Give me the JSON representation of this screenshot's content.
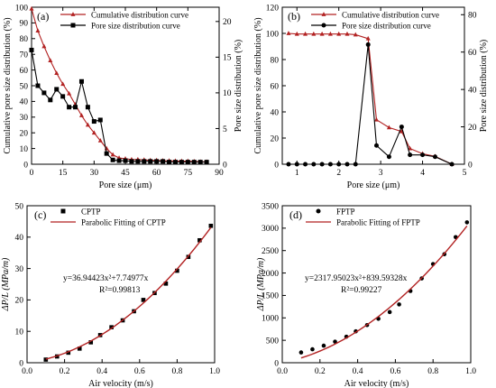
{
  "chart_data": [
    {
      "panel_label": "(a)",
      "type": "line",
      "xlabel": "Pore size (μm)",
      "ylabel": "Cumulative pore size distribution (%)",
      "y2label": "Pore size distribution (%)",
      "xlim": [
        0,
        90
      ],
      "ylim": [
        0,
        100
      ],
      "y2lim": [
        0,
        22
      ],
      "xticks": [
        0,
        15,
        30,
        45,
        60,
        75,
        90
      ],
      "yticks": [
        0,
        10,
        20,
        30,
        40,
        50,
        60,
        70,
        80,
        90,
        100
      ],
      "y2ticks": [
        0,
        5,
        10,
        15,
        20
      ],
      "legend_position": "top-center",
      "series": [
        {
          "name": "Cumulative distribution curve",
          "axis": "left",
          "color": "#b22222",
          "marker": "triangle",
          "x": [
            0,
            3,
            6,
            9,
            12,
            15,
            18,
            21,
            24,
            27,
            30,
            33,
            36,
            39,
            42,
            45,
            48,
            51,
            54,
            57,
            60,
            63,
            66,
            69,
            72,
            75,
            78,
            81,
            84
          ],
          "y": [
            99,
            85,
            75,
            66,
            58,
            51,
            45,
            38,
            31,
            25,
            20,
            15,
            10,
            6,
            4,
            3.5,
            3,
            3,
            2.8,
            2.5,
            2.5,
            2.3,
            2.2,
            2.1,
            2,
            2,
            1.8,
            1.6,
            1.5
          ]
        },
        {
          "name": "Pore size distribution curve",
          "axis": "right",
          "color": "#000000",
          "marker": "square",
          "x": [
            0,
            3,
            6,
            9,
            12,
            15,
            18,
            21,
            24,
            27,
            30,
            33,
            36,
            39,
            42,
            45,
            48,
            51,
            54,
            57,
            60,
            63,
            66,
            69,
            72,
            75,
            78,
            81,
            84
          ],
          "y": [
            16,
            11,
            10,
            9,
            10.5,
            9.5,
            8,
            8,
            11.6,
            8,
            6,
            6.2,
            1.5,
            0.6,
            0.5,
            0.5,
            0.4,
            0.4,
            0.4,
            0.4,
            0.4,
            0.4,
            0.3,
            0.3,
            0.3,
            0.3,
            0.3,
            0.3,
            0.3
          ]
        }
      ]
    },
    {
      "panel_label": "(b)",
      "type": "line",
      "xlabel": "Pore size (μm)",
      "ylabel": "Cumulative pore size distribution (%)",
      "y2label": "Pore size distribution (%)",
      "xlim": [
        0.65,
        5
      ],
      "ylim": [
        0,
        120
      ],
      "y2lim": [
        0,
        84
      ],
      "xticks": [
        1,
        2,
        3,
        4,
        5
      ],
      "yticks": [
        0,
        20,
        40,
        60,
        80,
        100,
        120
      ],
      "y2ticks": [
        0,
        20,
        40,
        60,
        80
      ],
      "legend_position": "top-center",
      "series": [
        {
          "name": "Cumulative distribution curve",
          "axis": "left",
          "color": "#b22222",
          "marker": "triangle",
          "x": [
            0.8,
            1.0,
            1.2,
            1.4,
            1.6,
            1.8,
            2.0,
            2.2,
            2.4,
            2.7,
            2.9,
            3.2,
            3.5,
            3.7,
            4.0,
            4.3,
            4.7
          ],
          "y": [
            100,
            99.5,
            99.5,
            99.5,
            99.5,
            99.5,
            99.5,
            99.5,
            99,
            96,
            34,
            28,
            25,
            12,
            8,
            6,
            0
          ]
        },
        {
          "name": "Pore size distribution curve",
          "axis": "right",
          "color": "#000000",
          "marker": "circle",
          "x": [
            0.8,
            1.0,
            1.2,
            1.4,
            1.6,
            1.8,
            2.0,
            2.2,
            2.4,
            2.7,
            2.9,
            3.2,
            3.5,
            3.7,
            4.0,
            4.3,
            4.7
          ],
          "y": [
            0,
            0,
            0,
            0,
            0,
            0,
            0,
            0,
            0,
            64,
            10,
            4,
            20,
            5,
            5,
            4,
            0
          ]
        }
      ]
    },
    {
      "panel_label": "(c)",
      "type": "scatter",
      "xlabel": "Air velocity (m/s)",
      "ylabel": "ΔP/L (MPa/m)",
      "xlim": [
        0,
        1.0
      ],
      "ylim": [
        0,
        50
      ],
      "xticks": [
        0.0,
        0.2,
        0.4,
        0.6,
        0.8,
        1.0
      ],
      "yticks": [
        0,
        10,
        20,
        30,
        40,
        50
      ],
      "legend_position": "top-left",
      "equation": "y=36.94423x²+7.74977x",
      "r_squared": "R²=0.99813",
      "series": [
        {
          "name": "CPTP",
          "kind": "points",
          "color": "#000000",
          "marker": "square",
          "x": [
            0.1,
            0.16,
            0.22,
            0.28,
            0.34,
            0.39,
            0.45,
            0.51,
            0.57,
            0.62,
            0.68,
            0.74,
            0.8,
            0.86,
            0.92,
            0.98
          ],
          "y": [
            1.0,
            2.0,
            3.2,
            4.5,
            6.5,
            8.8,
            11.3,
            13.5,
            16.4,
            20.0,
            22.2,
            25.2,
            29.3,
            33.7,
            39.0,
            43.6
          ]
        },
        {
          "name": "Parabolic Fitting of CPTP",
          "kind": "fit",
          "color": "#b22222",
          "coeffs": [
            36.94423,
            7.74977
          ],
          "xrange": [
            0.1,
            0.98
          ]
        }
      ]
    },
    {
      "panel_label": "(d)",
      "type": "scatter",
      "xlabel": "Air velocity (m/s)",
      "ylabel": "ΔP/L (MPa/m)",
      "xlim": [
        0,
        1.0
      ],
      "ylim": [
        0,
        3500
      ],
      "xticks": [
        0.0,
        0.2,
        0.4,
        0.6,
        0.8,
        1.0
      ],
      "yticks": [
        0,
        500,
        1000,
        1500,
        2000,
        2500,
        3000,
        3500
      ],
      "legend_position": "top-left",
      "equation": "y=2317.95023x²+839.59328x",
      "r_squared": "R²=0.99227",
      "series": [
        {
          "name": "FPTP",
          "kind": "points",
          "color": "#000000",
          "marker": "circle",
          "x": [
            0.1,
            0.16,
            0.22,
            0.28,
            0.34,
            0.39,
            0.45,
            0.51,
            0.57,
            0.62,
            0.68,
            0.74,
            0.8,
            0.86,
            0.92,
            0.98
          ],
          "y": [
            230,
            300,
            380,
            470,
            580,
            700,
            840,
            980,
            1130,
            1300,
            1600,
            1880,
            2200,
            2420,
            2800,
            3130
          ]
        },
        {
          "name": "Parabolic Fitting of FPTP",
          "kind": "fit",
          "color": "#b22222",
          "coeffs": [
            2317.95023,
            839.59328
          ],
          "xrange": [
            0.1,
            0.98
          ]
        }
      ]
    }
  ]
}
